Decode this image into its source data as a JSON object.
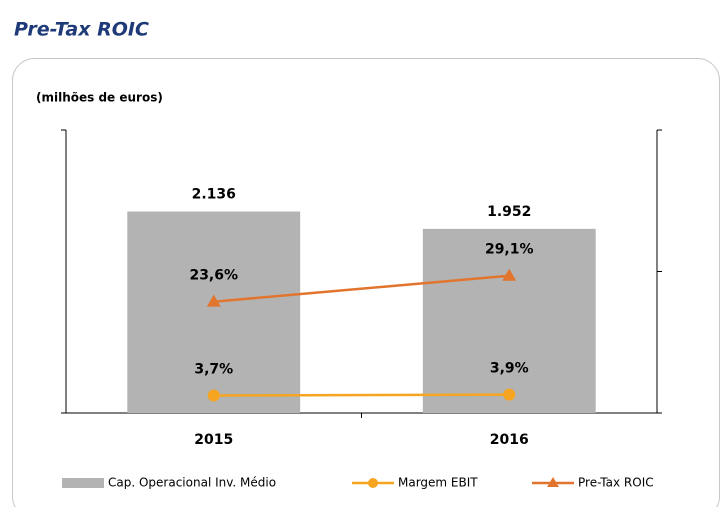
{
  "chart_data": {
    "type": "combo",
    "title": "Pre-Tax ROIC",
    "subtitle": "(milhões de euros)",
    "categories": [
      "2015",
      "2016"
    ],
    "series": [
      {
        "name": "Cap. Operacional Inv. Médio",
        "type": "bar",
        "axis": "y",
        "color": "#b3b3b3",
        "values": [
          2136,
          1952
        ],
        "value_labels": [
          "2.136",
          "1.952"
        ]
      },
      {
        "name": "Margem EBIT",
        "type": "line",
        "marker": "circle",
        "axis": "y2",
        "color": "#f7a521",
        "values": [
          3.7,
          3.9
        ],
        "value_labels": [
          "3,7%",
          "3,9%"
        ]
      },
      {
        "name": "Pre-Tax ROIC",
        "type": "line",
        "marker": "triangle",
        "axis": "y2",
        "color": "#e2752d",
        "values": [
          23.6,
          29.1
        ],
        "value_labels": [
          "23,6%",
          "29,1%"
        ]
      }
    ],
    "ylim": [
      0,
      3000
    ],
    "yticks": [
      0,
      3000
    ],
    "y2lim": [
      0,
      60
    ],
    "y2ticks": [
      0,
      30,
      60
    ],
    "legend": "bottom"
  }
}
